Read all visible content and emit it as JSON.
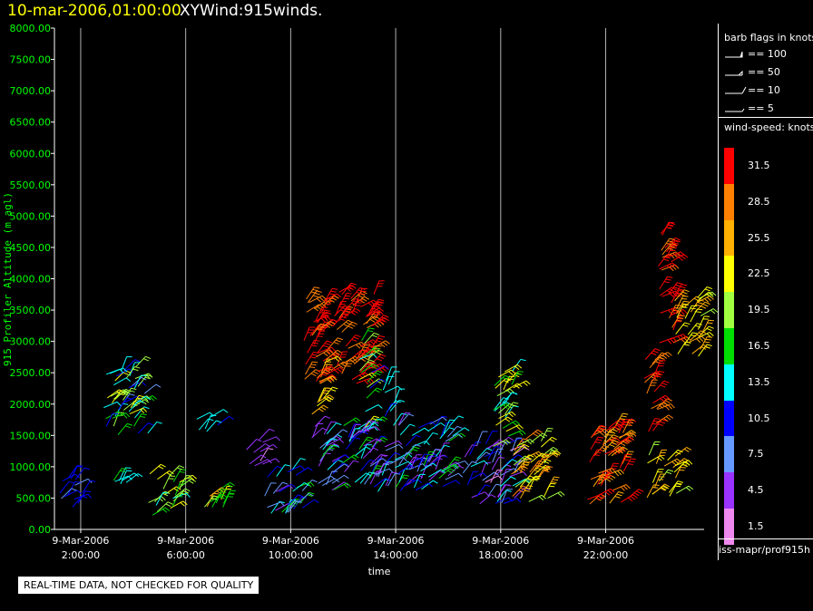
{
  "header": {
    "date": "10-mar-2006,01:00:00",
    "title": "XYWind:915winds."
  },
  "legend": {
    "barb_title": "barb flags in knots",
    "barbs": [
      {
        "label": "== 100",
        "kind": "pennant"
      },
      {
        "label": "== 50",
        "kind": "flag"
      },
      {
        "label": "== 10",
        "kind": "full"
      },
      {
        "label": "== 5",
        "kind": "half"
      }
    ],
    "speed_title": "wind-speed: knots",
    "colorbar": [
      {
        "label": "31.5",
        "color": "#ff0000"
      },
      {
        "label": "28.5",
        "color": "#ff8000"
      },
      {
        "label": "25.5",
        "color": "#ffb000"
      },
      {
        "label": "22.5",
        "color": "#ffff00"
      },
      {
        "label": "19.5",
        "color": "#a0ff40"
      },
      {
        "label": "16.5",
        "color": "#00dd00"
      },
      {
        "label": "13.5",
        "color": "#00ffff"
      },
      {
        "label": "10.5",
        "color": "#0000ff"
      },
      {
        "label": "7.5",
        "color": "#6699ff"
      },
      {
        "label": "4.5",
        "color": "#9933ff"
      },
      {
        "label": "1.5",
        "color": "#ee88ee"
      }
    ]
  },
  "source_label": "iss-mapr/prof915h",
  "footer_note": "REAL-TIME DATA, NOT CHECKED FOR QUALITY",
  "chart_data": {
    "type": "scatter",
    "ylabel": "915 Profiler Altitude (m agl)",
    "xlabel": "time",
    "ylim": [
      0,
      8000
    ],
    "yticks": [
      "0.00",
      "500.00",
      "1000.00",
      "1500.00",
      "2000.00",
      "2500.00",
      "3000.00",
      "3500.00",
      "4000.00",
      "4500.00",
      "5000.00",
      "5500.00",
      "6000.00",
      "6500.00",
      "7000.00",
      "7500.00",
      "8000.00"
    ],
    "x_unit": "hours since 9-Mar-2006 00:00",
    "xlim": [
      1.0,
      25.75
    ],
    "xticks": [
      {
        "hour": 2,
        "date": "9-Mar-2006",
        "time": "2:00:00"
      },
      {
        "hour": 6,
        "date": "9-Mar-2006",
        "time": "6:00:00"
      },
      {
        "hour": 10,
        "date": "9-Mar-2006",
        "time": "10:00:00"
      },
      {
        "hour": 14,
        "date": "9-Mar-2006",
        "time": "14:00:00"
      },
      {
        "hour": 18,
        "date": "9-Mar-2006",
        "time": "18:00:00"
      },
      {
        "hour": 22,
        "date": "9-Mar-2006",
        "time": "22:00:00"
      }
    ],
    "vertical_gridlines": true,
    "series_note": "wind barbs colored by wind speed (knots)",
    "clusters": [
      {
        "t_range": [
          1.1,
          2.1
        ],
        "alt_range": [
          300,
          900
        ],
        "speed_range": [
          6,
          12
        ]
      },
      {
        "t_range": [
          2.8,
          4.6
        ],
        "alt_range": [
          1500,
          2600
        ],
        "speed_range": [
          8,
          24
        ]
      },
      {
        "t_range": [
          3.1,
          3.8
        ],
        "alt_range": [
          600,
          800
        ],
        "speed_range": [
          12,
          16
        ]
      },
      {
        "t_range": [
          4.5,
          5.8
        ],
        "alt_range": [
          200,
          900
        ],
        "speed_range": [
          14,
          24
        ]
      },
      {
        "t_range": [
          6.4,
          7.3
        ],
        "alt_range": [
          1550,
          1800
        ],
        "speed_range": [
          11,
          14
        ]
      },
      {
        "t_range": [
          6.7,
          7.8
        ],
        "alt_range": [
          250,
          650
        ],
        "speed_range": [
          15,
          28
        ]
      },
      {
        "t_range": [
          8.2,
          9.0
        ],
        "alt_range": [
          1000,
          1500
        ],
        "speed_range": [
          2,
          6
        ]
      },
      {
        "t_range": [
          9.0,
          10.5
        ],
        "alt_range": [
          250,
          1000
        ],
        "speed_range": [
          4,
          16
        ]
      },
      {
        "t_range": [
          10.5,
          13.2
        ],
        "alt_range": [
          2300,
          3800
        ],
        "speed_range": [
          27,
          34
        ]
      },
      {
        "t_range": [
          10.8,
          11.3
        ],
        "alt_range": [
          1800,
          2700
        ],
        "speed_range": [
          18,
          27
        ]
      },
      {
        "t_range": [
          12.6,
          13.1
        ],
        "alt_range": [
          1500,
          3100
        ],
        "speed_range": [
          10,
          24
        ]
      },
      {
        "t_range": [
          10.6,
          16.2
        ],
        "alt_range": [
          600,
          1700
        ],
        "speed_range": [
          3,
          16
        ]
      },
      {
        "t_range": [
          13.5,
          14.0
        ],
        "alt_range": [
          1700,
          2400
        ],
        "speed_range": [
          11,
          15
        ]
      },
      {
        "t_range": [
          16.5,
          18.6
        ],
        "alt_range": [
          400,
          1400
        ],
        "speed_range": [
          2,
          14
        ]
      },
      {
        "t_range": [
          17.7,
          18.5
        ],
        "alt_range": [
          1200,
          2600
        ],
        "speed_range": [
          12,
          24
        ]
      },
      {
        "t_range": [
          18.3,
          19.8
        ],
        "alt_range": [
          400,
          1450
        ],
        "speed_range": [
          20,
          30
        ]
      },
      {
        "t_range": [
          21.3,
          22.9
        ],
        "alt_range": [
          400,
          1650
        ],
        "speed_range": [
          25,
          34
        ]
      },
      {
        "t_range": [
          23.4,
          24.0
        ],
        "alt_range": [
          1500,
          2800
        ],
        "speed_range": [
          27,
          33
        ]
      },
      {
        "t_range": [
          23.5,
          24.7
        ],
        "alt_range": [
          500,
          1200
        ],
        "speed_range": [
          19,
          27
        ]
      },
      {
        "t_range": [
          24.0,
          24.6
        ],
        "alt_range": [
          2700,
          4750
        ],
        "speed_range": [
          27,
          34
        ]
      },
      {
        "t_range": [
          24.6,
          25.7
        ],
        "alt_range": [
          2700,
          3800
        ],
        "speed_range": [
          20,
          26
        ]
      }
    ]
  }
}
